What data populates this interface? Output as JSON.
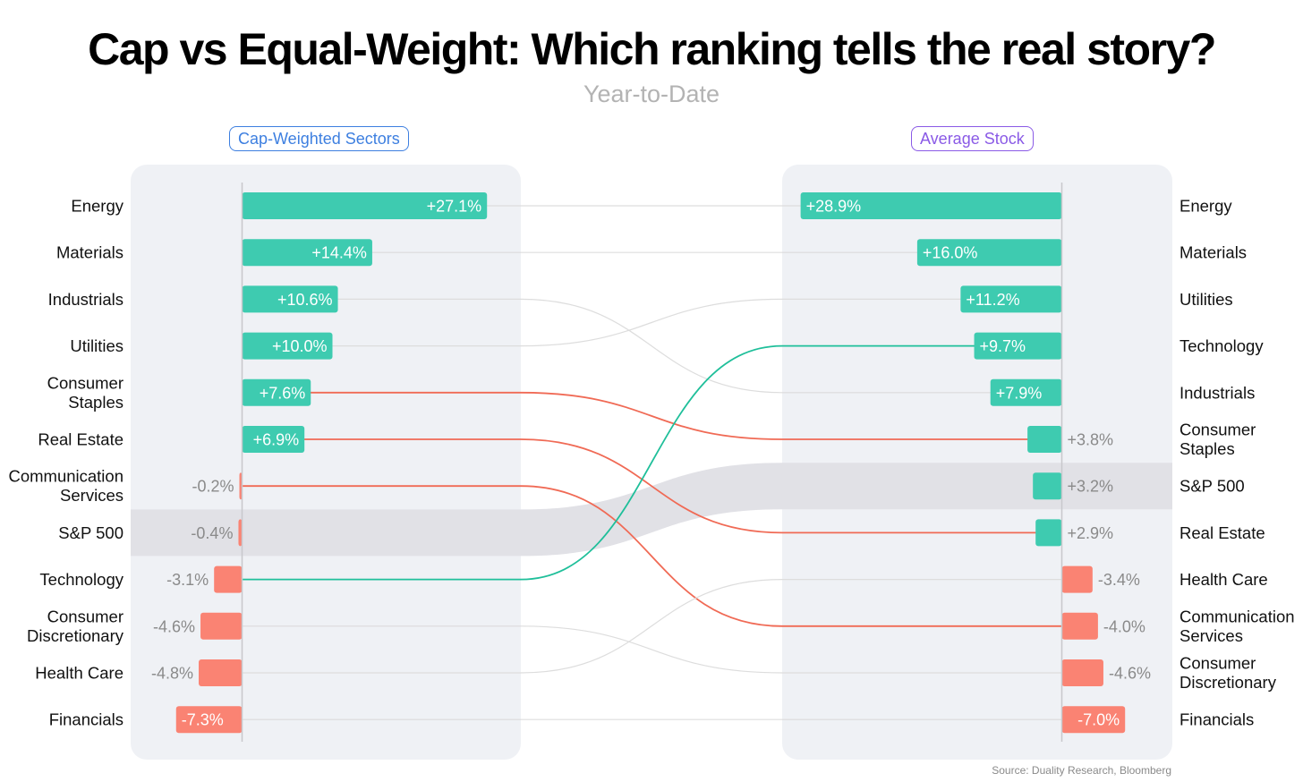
{
  "header": {
    "title": "Cap vs Equal-Weight: Which ranking tells the real story?",
    "subtitle": "Year-to-Date"
  },
  "panels": {
    "left_label": "Cap-Weighted Sectors",
    "right_label": "Average Stock"
  },
  "colors": {
    "positive": "#3ECBB0",
    "negative": "#FA8373",
    "benchmark_band": "#E1E1E6",
    "panel_bg": "#EFF1F5",
    "left_accent": "#3D7FE0",
    "right_accent": "#8A5AE6",
    "improver_line": "#1FBF9A",
    "decliner_line": "#F06A55",
    "neutral_line": "#DDDDDD"
  },
  "source": "Source: Duality Research, Bloomberg",
  "chart_data": {
    "type": "bar",
    "title": "Cap vs Equal-Weight: Which ranking tells the real story?",
    "subtitle": "Year-to-Date",
    "unit": "%",
    "left": {
      "name": "Cap-Weighted Sectors",
      "items": [
        {
          "label": "Energy",
          "value": 27.1,
          "text": "+27.1%"
        },
        {
          "label": "Materials",
          "value": 14.4,
          "text": "+14.4%"
        },
        {
          "label": "Industrials",
          "value": 10.6,
          "text": "+10.6%"
        },
        {
          "label": "Utilities",
          "value": 10.0,
          "text": "+10.0%"
        },
        {
          "label": "Consumer Staples",
          "value": 7.6,
          "text": "+7.6%"
        },
        {
          "label": "Real Estate",
          "value": 6.9,
          "text": "+6.9%"
        },
        {
          "label": "Communication Services",
          "value": -0.2,
          "text": "-0.2%"
        },
        {
          "label": "S&P 500",
          "value": -0.4,
          "text": "-0.4%"
        },
        {
          "label": "Technology",
          "value": -3.1,
          "text": "-3.1%"
        },
        {
          "label": "Consumer Discretionary",
          "value": -4.6,
          "text": "-4.6%"
        },
        {
          "label": "Health Care",
          "value": -4.8,
          "text": "-4.8%"
        },
        {
          "label": "Financials",
          "value": -7.3,
          "text": "-7.3%"
        }
      ]
    },
    "right": {
      "name": "Average Stock",
      "items": [
        {
          "label": "Energy",
          "value": 28.9,
          "text": "+28.9%"
        },
        {
          "label": "Materials",
          "value": 16.0,
          "text": "+16.0%"
        },
        {
          "label": "Utilities",
          "value": 11.2,
          "text": "+11.2%"
        },
        {
          "label": "Technology",
          "value": 9.7,
          "text": "+9.7%"
        },
        {
          "label": "Industrials",
          "value": 7.9,
          "text": "+7.9%"
        },
        {
          "label": "Consumer Staples",
          "value": 3.8,
          "text": "+3.8%"
        },
        {
          "label": "S&P 500",
          "value": 3.2,
          "text": "+3.2%"
        },
        {
          "label": "Real Estate",
          "value": 2.9,
          "text": "+2.9%"
        },
        {
          "label": "Health Care",
          "value": -3.4,
          "text": "-3.4%"
        },
        {
          "label": "Communication Services",
          "value": -4.0,
          "text": "-4.0%"
        },
        {
          "label": "Consumer Discretionary",
          "value": -4.6,
          "text": "-4.6%"
        },
        {
          "label": "Financials",
          "value": -7.0,
          "text": "-7.0%"
        }
      ]
    },
    "benchmark": "S&P 500",
    "highlighted_improvers": [
      "Technology"
    ],
    "highlighted_decliners": [
      "Consumer Staples",
      "Real Estate",
      "Communication Services"
    ]
  }
}
